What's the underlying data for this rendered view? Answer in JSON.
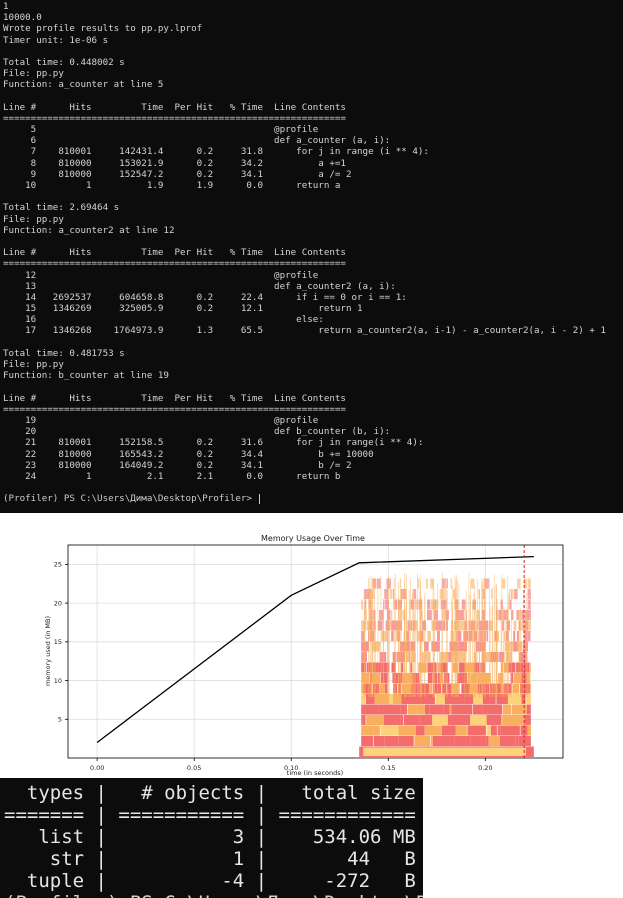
{
  "terminal": {
    "lines": [
      "1",
      "10000.0",
      "Wrote profile results to pp.py.lprof",
      "Timer unit: 1e-06 s",
      "",
      "Total time: 0.448002 s",
      "File: pp.py",
      "Function: a_counter at line 5",
      "",
      "Line #      Hits         Time  Per Hit   % Time  Line Contents",
      "==============================================================",
      "     5                                           @profile",
      "     6                                           def a_counter (a, i):",
      "     7    810001     142431.4      0.2     31.8      for j in range (i ** 4):",
      "     8    810000     153021.9      0.2     34.2          a +=1",
      "     9    810000     152547.2      0.2     34.1          a /= 2",
      "    10         1          1.9      1.9      0.0      return a",
      "",
      "Total time: 2.69464 s",
      "File: pp.py",
      "Function: a_counter2 at line 12",
      "",
      "Line #      Hits         Time  Per Hit   % Time  Line Contents",
      "==============================================================",
      "    12                                           @profile",
      "    13                                           def a_counter2 (a, i):",
      "    14   2692537     604658.8      0.2     22.4      if i == 0 or i == 1:",
      "    15   1346269     325005.9      0.2     12.1          return 1",
      "    16                                               else:",
      "    17   1346268    1764973.9      1.3     65.5          return a_counter2(a, i-1) - a_counter2(a, i - 2) + 1",
      "",
      "Total time: 0.481753 s",
      "File: pp.py",
      "Function: b_counter at line 19",
      "",
      "Line #      Hits         Time  Per Hit   % Time  Line Contents",
      "==============================================================",
      "    19                                           @profile",
      "    20                                           def b_counter (b, i):",
      "    21    810001     152158.5      0.2     31.6      for j in range(i ** 4):",
      "    22    810000     165543.2      0.2     34.4          b += 10000",
      "    23    810000     164049.2      0.2     34.1          b /= 2",
      "    24         1          2.1      2.1      0.0      return b",
      "",
      "(Profiler) PS C:\\Users\\Дима\\Desktop\\Profiler> "
    ]
  },
  "chart_data": {
    "type": "line",
    "title": "Memory Usage Over Time",
    "xlabel": "time (in seconds)",
    "ylabel": "memory used (in MB)",
    "xlim": [
      -0.015,
      0.24
    ],
    "ylim": [
      0,
      27.5
    ],
    "xticks": [
      "0.00",
      "0.05",
      "0.10",
      "0.15",
      "0.20"
    ],
    "xtick_values": [
      0.0,
      0.05,
      0.1,
      0.15,
      0.2
    ],
    "yticks": [
      "5",
      "10",
      "15",
      "20",
      "25"
    ],
    "ytick_values": [
      5,
      10,
      15,
      20,
      25
    ],
    "grid": true,
    "series": [
      {
        "x": [
          0.0,
          0.1,
          0.135,
          0.225
        ],
        "y": [
          2.0,
          21.0,
          25.2,
          26.0
        ],
        "color": "#000000"
      }
    ],
    "markers": {
      "vline_x": 0.22,
      "vline_color": "#d62728"
    },
    "flame_region": {
      "x_start": 0.135,
      "x_end": 0.225,
      "y_top": 24.0
    },
    "colors": {
      "flame_red": "#f46d6d",
      "flame_orange": "#f8b060",
      "flame_yellow": "#fcd27a"
    }
  },
  "objects_table": {
    "rows": [
      "  types |   # objects |   total size",
      "======= | =========== | ============",
      "   list |           3 |    534.06 MB",
      "    str |           1 |       44   B",
      "  tuple |          -4 |     -272   B",
      "(Profiler) PS C:\\Users\\Дима\\Desktop\\P"
    ]
  }
}
